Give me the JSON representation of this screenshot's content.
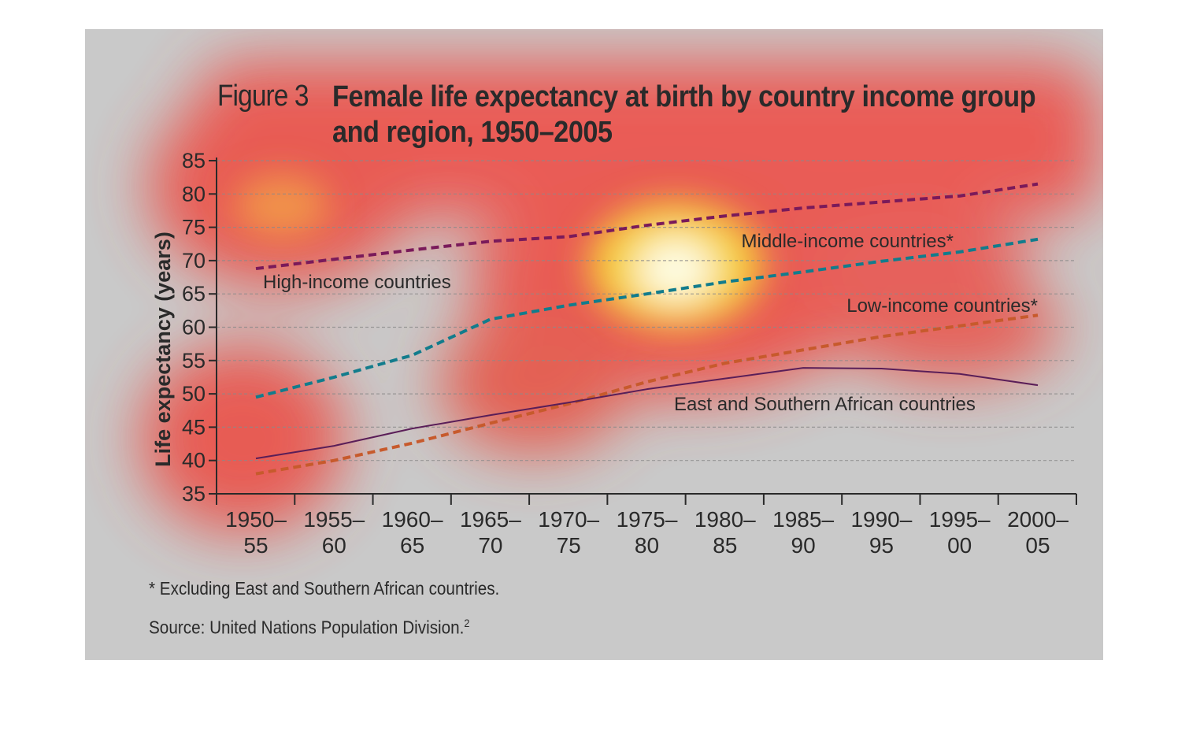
{
  "figure": {
    "label": "Figure 3",
    "title": "Female life expectancy at birth by country income group and region, 1950–2005",
    "footnote": "* Excluding East and Southern African countries.",
    "source": "Source: United Nations Population Division.",
    "source_ref": "2"
  },
  "chart_data": {
    "type": "line",
    "ylabel": "Life expectancy (years)",
    "xlabel": "",
    "ylim": [
      35,
      85
    ],
    "yticks": [
      35,
      40,
      45,
      50,
      55,
      60,
      65,
      70,
      75,
      80,
      85
    ],
    "grid": true,
    "categories": [
      [
        "1950–",
        "55"
      ],
      [
        "1955–",
        "60"
      ],
      [
        "1960–",
        "65"
      ],
      [
        "1965–",
        "70"
      ],
      [
        "1970–",
        "75"
      ],
      [
        "1975–",
        "80"
      ],
      [
        "1980–",
        "85"
      ],
      [
        "1985–",
        "90"
      ],
      [
        "1990–",
        "95"
      ],
      [
        "1995–",
        "00"
      ],
      [
        "2000–",
        "05"
      ]
    ],
    "series": [
      {
        "name": "High-income countries",
        "dashed": true,
        "color": "#7a1a5a",
        "values": [
          68.8,
          70.2,
          71.6,
          72.9,
          73.6,
          75.3,
          76.7,
          77.9,
          78.8,
          79.7,
          81.5
        ]
      },
      {
        "name": "Middle-income countries*",
        "dashed": true,
        "color": "#127c8c",
        "values": [
          49.5,
          52.5,
          55.8,
          61.2,
          63.3,
          65.0,
          66.8,
          68.3,
          69.9,
          71.3,
          73.2
        ]
      },
      {
        "name": "Low-income countries*",
        "dashed": true,
        "color": "#c75a2c",
        "values": [
          38.0,
          40.0,
          42.6,
          45.6,
          48.5,
          51.8,
          54.6,
          56.6,
          58.6,
          60.2,
          61.8
        ]
      },
      {
        "name": "East and Southern African countries",
        "dashed": false,
        "color": "#5a1e58",
        "values": [
          40.3,
          42.2,
          44.8,
          46.8,
          48.7,
          50.7,
          52.3,
          53.9,
          53.8,
          53.0,
          51.3
        ]
      }
    ]
  }
}
